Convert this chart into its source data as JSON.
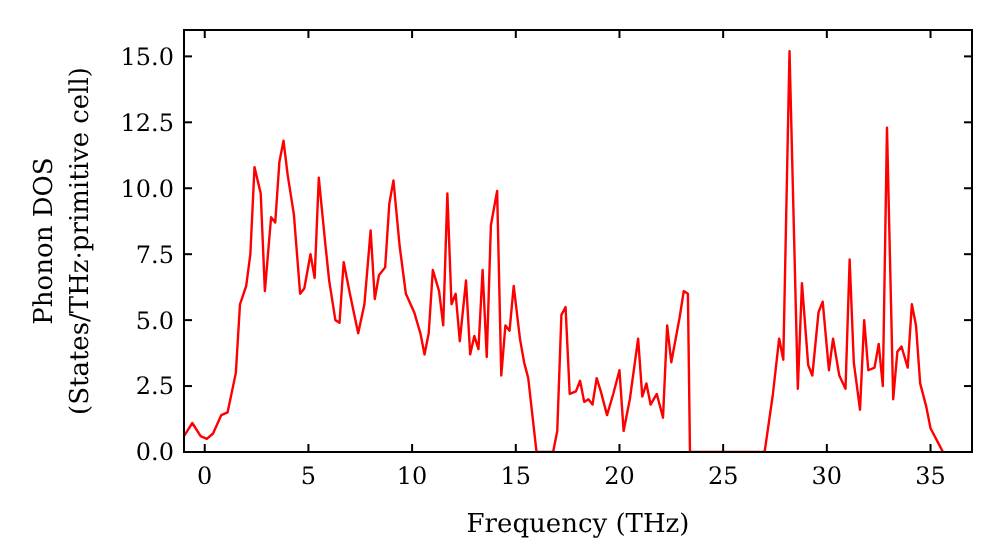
{
  "chart_data": {
    "type": "line",
    "xlabel": "Frequency (THz)",
    "ylabel": "Phonon DOS\n(States/THz·primitive cell)",
    "xlim": [
      -1,
      37
    ],
    "ylim": [
      0,
      16
    ],
    "xticks": [
      0,
      5,
      10,
      15,
      20,
      25,
      30,
      35
    ],
    "yticks": [
      {
        "value": 0,
        "label": "0.0"
      },
      {
        "value": 2.5,
        "label": "2.5"
      },
      {
        "value": 5,
        "label": "5.0"
      },
      {
        "value": 7.5,
        "label": "7.5"
      },
      {
        "value": 10,
        "label": "10.0"
      },
      {
        "value": 12.5,
        "label": "12.5"
      },
      {
        "value": 15,
        "label": "15.0"
      }
    ],
    "grid": false,
    "marker": "none",
    "line_style": "solid",
    "series": [
      {
        "color": "#ff0000",
        "x": [
          -1,
          -0.6,
          -0.2,
          0.1,
          0.4,
          0.8,
          1.1,
          1.5,
          1.7,
          2.0,
          2.2,
          2.4,
          2.7,
          2.9,
          3.2,
          3.4,
          3.6,
          3.8,
          4.0,
          4.3,
          4.6,
          4.8,
          5.1,
          5.3,
          5.5,
          5.8,
          6.0,
          6.3,
          6.5,
          6.7,
          7.0,
          7.4,
          7.7,
          8.0,
          8.2,
          8.4,
          8.7,
          8.9,
          9.1,
          9.4,
          9.7,
          10.1,
          10.4,
          10.6,
          10.8,
          11.0,
          11.3,
          11.5,
          11.7,
          11.9,
          12.1,
          12.3,
          12.6,
          12.8,
          13.0,
          13.2,
          13.4,
          13.6,
          13.8,
          14.1,
          14.3,
          14.5,
          14.7,
          14.9,
          15.2,
          15.4,
          15.6,
          16.0,
          16.8,
          17.0,
          17.2,
          17.4,
          17.6,
          17.9,
          18.1,
          18.3,
          18.5,
          18.7,
          18.9,
          19.1,
          19.4,
          19.7,
          20.0,
          20.2,
          20.5,
          20.9,
          21.1,
          21.3,
          21.5,
          21.8,
          22.1,
          22.3,
          22.5,
          22.9,
          23.1,
          23.3,
          23.4,
          27.0,
          27.4,
          27.7,
          27.9,
          28.2,
          28.6,
          28.8,
          29.1,
          29.3,
          29.6,
          29.8,
          30.1,
          30.3,
          30.6,
          30.9,
          31.1,
          31.3,
          31.6,
          31.8,
          32.0,
          32.3,
          32.5,
          32.7,
          32.9,
          33.2,
          33.4,
          33.6,
          33.9,
          34.1,
          34.3,
          34.5,
          34.8,
          35.0,
          35.4,
          35.6
        ],
        "values": [
          0.6,
          1.1,
          0.6,
          0.5,
          0.7,
          1.4,
          1.5,
          3.0,
          5.6,
          6.3,
          7.5,
          10.8,
          9.8,
          6.1,
          8.9,
          8.7,
          11.0,
          11.8,
          10.5,
          9.0,
          6.0,
          6.2,
          7.5,
          6.6,
          10.4,
          8.0,
          6.5,
          5.0,
          4.9,
          7.2,
          6.0,
          4.5,
          5.6,
          8.4,
          5.8,
          6.7,
          7.0,
          9.4,
          10.3,
          7.8,
          6.0,
          5.3,
          4.5,
          3.7,
          4.5,
          6.9,
          6.1,
          4.8,
          9.8,
          5.6,
          6.0,
          4.2,
          6.5,
          3.7,
          4.4,
          3.9,
          6.9,
          3.6,
          8.6,
          9.9,
          2.9,
          4.8,
          4.6,
          6.3,
          4.3,
          3.4,
          2.8,
          0,
          0,
          0.8,
          5.2,
          5.5,
          2.2,
          2.3,
          2.7,
          1.9,
          2.0,
          1.8,
          2.8,
          2.3,
          1.4,
          2.2,
          3.1,
          0.8,
          2.0,
          4.3,
          2.1,
          2.6,
          1.8,
          2.2,
          1.3,
          4.8,
          3.4,
          5.1,
          6.1,
          6.0,
          0,
          0,
          2.2,
          4.3,
          3.5,
          15.2,
          2.4,
          6.4,
          3.3,
          2.9,
          5.3,
          5.7,
          3.1,
          4.3,
          2.9,
          2.4,
          7.3,
          3.4,
          1.6,
          5.0,
          3.1,
          3.2,
          4.1,
          2.5,
          12.3,
          2.0,
          3.8,
          4.0,
          3.2,
          5.6,
          4.8,
          2.6,
          1.7,
          0.9,
          0.3,
          0
        ]
      }
    ]
  }
}
